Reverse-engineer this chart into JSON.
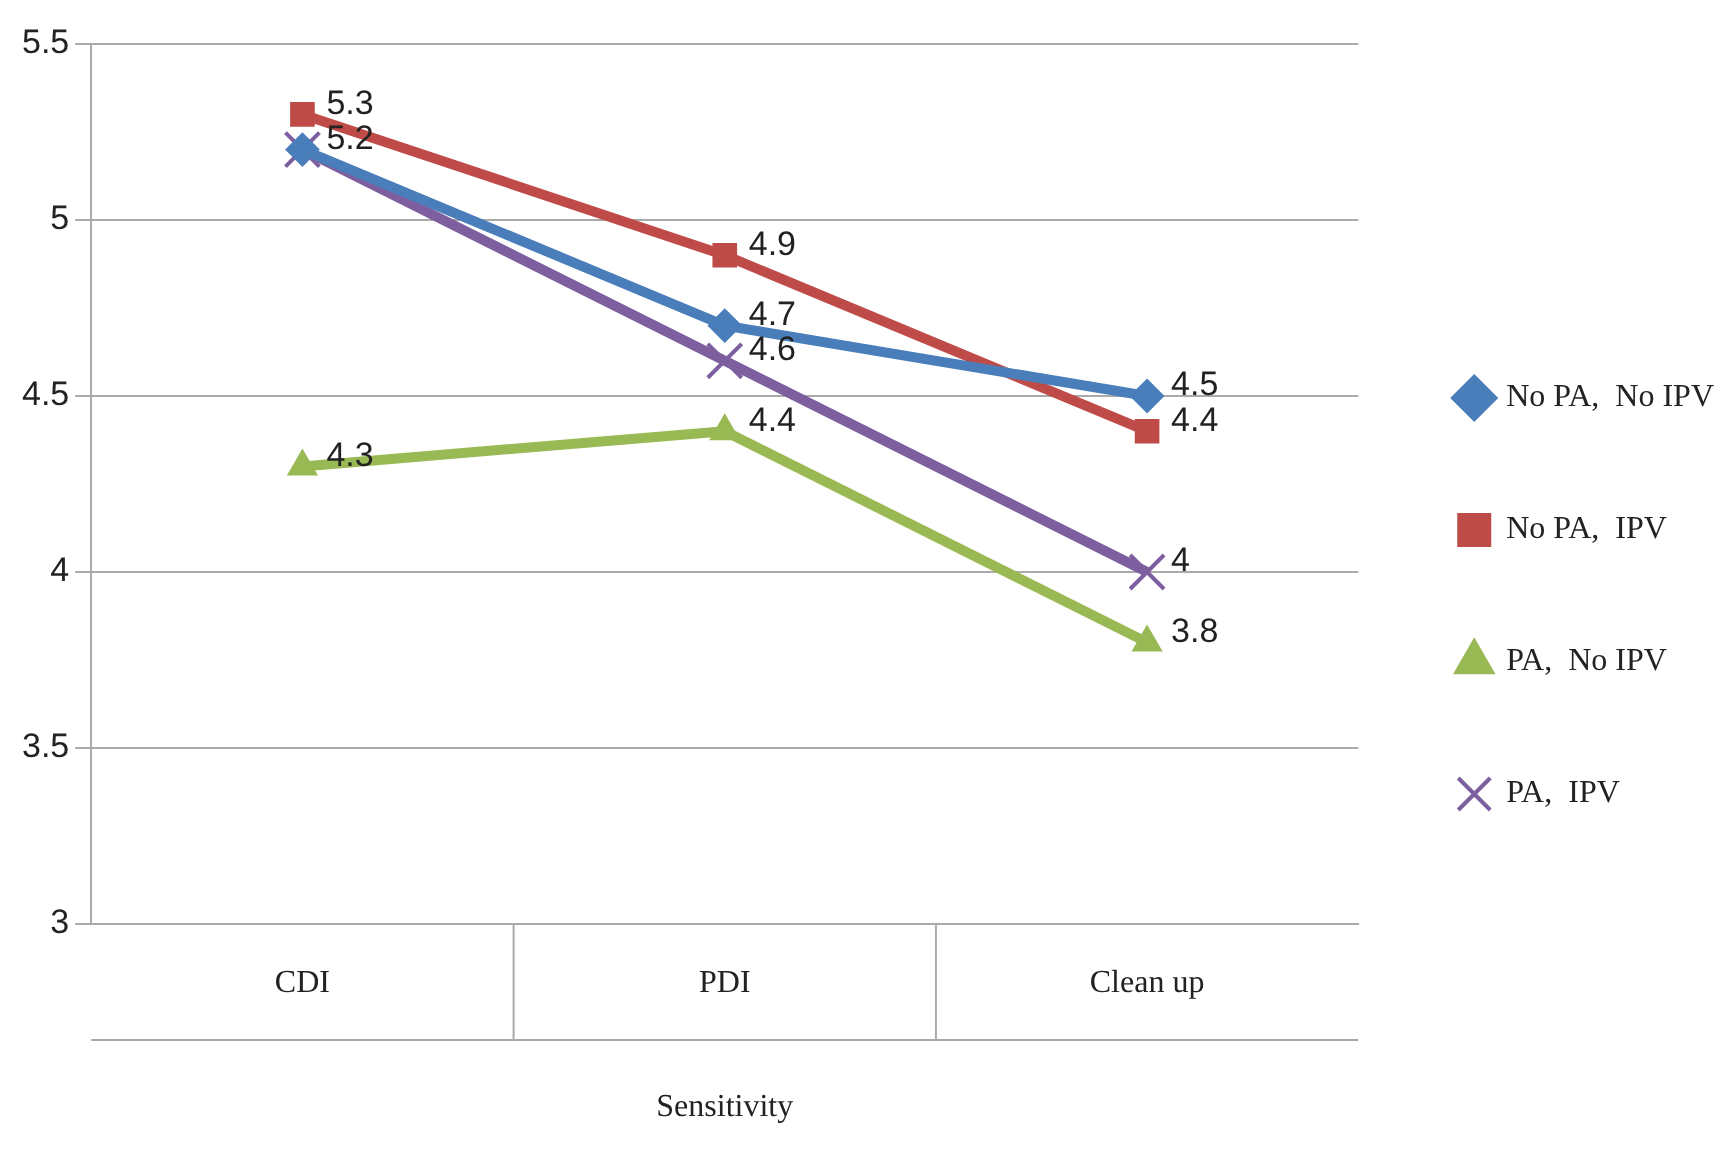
{
  "chart_data": {
    "type": "line",
    "xlabel": "Sensitivity",
    "categories": [
      "CDI",
      "PDI",
      "Clean up"
    ],
    "series": [
      {
        "name": "No PA,  No IPV",
        "color": "#4a7ebb",
        "marker": "diamond",
        "values": [
          5.2,
          4.7,
          4.5
        ],
        "value_labels": [
          "5.2",
          "4.7",
          "4.5"
        ]
      },
      {
        "name": "No PA,  IPV",
        "color": "#be4b48",
        "marker": "square",
        "values": [
          5.3,
          4.9,
          4.4
        ],
        "value_labels": [
          "5.3",
          "4.9",
          "4.4"
        ]
      },
      {
        "name": "PA,  No IPV",
        "color": "#98b954",
        "marker": "triangle",
        "values": [
          4.3,
          4.4,
          3.8
        ],
        "value_labels": [
          "4.3",
          "4.4",
          "3.8"
        ]
      },
      {
        "name": "PA,  IPV",
        "color": "#7d5fa0",
        "marker": "cross",
        "values": [
          5.2,
          4.6,
          4
        ],
        "value_labels": [
          null,
          "4.6",
          "4"
        ]
      }
    ],
    "ylim": [
      3,
      5.5
    ],
    "yticks": [
      3,
      3.5,
      4,
      4.5,
      5,
      5.5
    ],
    "grid": "y",
    "legend": "right"
  }
}
